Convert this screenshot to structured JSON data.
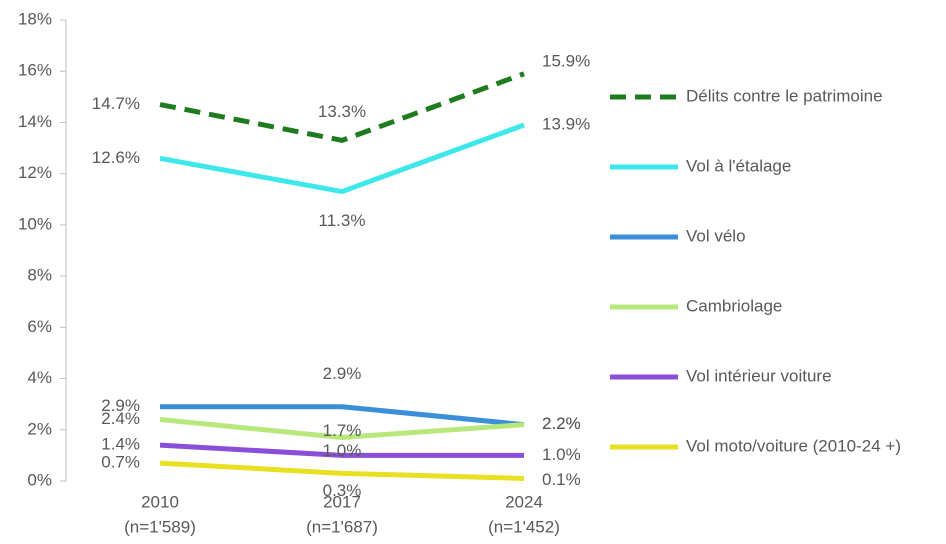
{
  "chart_data": {
    "type": "line",
    "categories": [
      "2010",
      "2017",
      "2024"
    ],
    "category_notes": [
      "(n=1'589)",
      "(n=1'687)",
      "(n=1'452)"
    ],
    "ylim": [
      0,
      18
    ],
    "yticks": [
      {
        "value": 0,
        "label": "0%"
      },
      {
        "value": 2,
        "label": "2%"
      },
      {
        "value": 4,
        "label": "4%"
      },
      {
        "value": 6,
        "label": "6%"
      },
      {
        "value": 8,
        "label": "8%"
      },
      {
        "value": 10,
        "label": "10%"
      },
      {
        "value": 12,
        "label": "12%"
      },
      {
        "value": 14,
        "label": "14%"
      },
      {
        "value": 16,
        "label": "16%"
      },
      {
        "value": 18,
        "label": "18%"
      }
    ],
    "legend": "right",
    "series": [
      {
        "name": "Délits contre le patrimoine",
        "color": "#1e7b1e",
        "dashed": true,
        "values": [
          14.7,
          13.3,
          15.9
        ],
        "value_labels": [
          "14.7%",
          "13.3%",
          "15.9%"
        ]
      },
      {
        "name": "Vol à l'étalage",
        "color": "#3ee8ea",
        "values": [
          12.6,
          11.3,
          13.9
        ],
        "value_labels": [
          "12.6%",
          "11.3%",
          "13.9%"
        ]
      },
      {
        "name": "Vol vélo",
        "color": "#3a8fd8",
        "values": [
          2.9,
          2.9,
          2.2
        ],
        "value_labels": [
          "2.9%",
          "2.9%",
          "2.2%"
        ]
      },
      {
        "name": "Cambriolage",
        "color": "#b8e87c",
        "values": [
          2.4,
          1.7,
          2.2
        ],
        "value_labels": [
          "2.4%",
          "1.7%",
          "2.2%"
        ]
      },
      {
        "name": "Vol intérieur voiture",
        "color": "#8a4fd8",
        "values": [
          1.4,
          1.0,
          1.0
        ],
        "value_labels": [
          "1.4%",
          "1.0%",
          "1.0%"
        ]
      },
      {
        "name": "Vol moto/voiture (2010-24 +)",
        "color": "#e8e020",
        "values": [
          0.7,
          0.3,
          0.1
        ],
        "value_labels": [
          "0.7%",
          "0.3%",
          "0.1%"
        ]
      }
    ]
  }
}
